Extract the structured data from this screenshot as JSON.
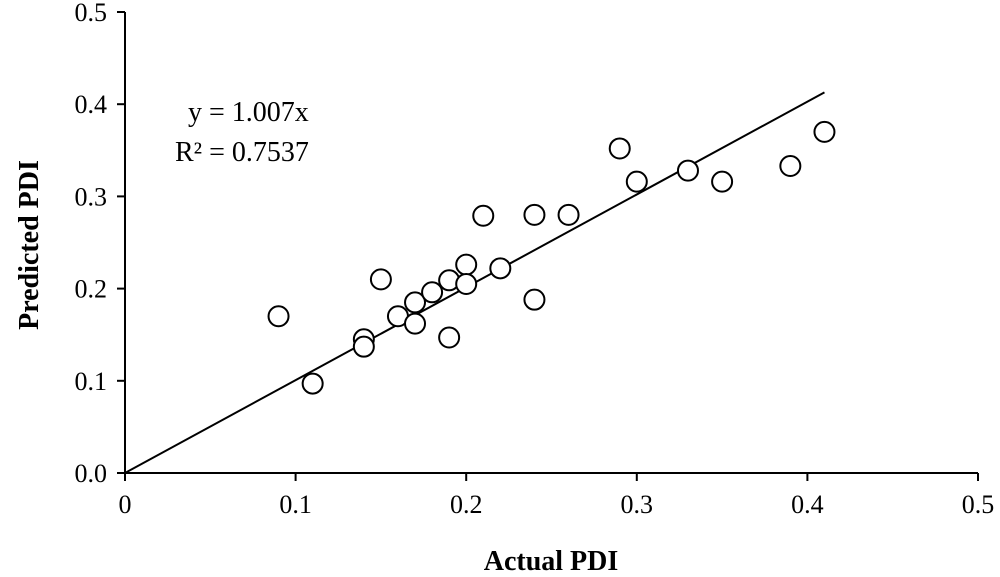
{
  "chart_data": {
    "type": "scatter",
    "title": "",
    "xlabel": "Actual PDI",
    "ylabel": "Predicted PDI",
    "xlim": [
      0,
      0.5
    ],
    "ylim": [
      0,
      0.5
    ],
    "x_ticks": [
      "0",
      "0.1",
      "0.2",
      "0.3",
      "0.4",
      "0.5"
    ],
    "y_ticks": [
      "0.0",
      "0.1",
      "0.2",
      "0.3",
      "0.4",
      "0.5"
    ],
    "grid": false,
    "series": [
      {
        "marker": "open-circle",
        "points": [
          [
            0.09,
            0.17
          ],
          [
            0.11,
            0.097
          ],
          [
            0.14,
            0.145
          ],
          [
            0.14,
            0.137
          ],
          [
            0.15,
            0.21
          ],
          [
            0.16,
            0.17
          ],
          [
            0.17,
            0.185
          ],
          [
            0.17,
            0.162
          ],
          [
            0.18,
            0.196
          ],
          [
            0.19,
            0.209
          ],
          [
            0.19,
            0.147
          ],
          [
            0.2,
            0.226
          ],
          [
            0.2,
            0.205
          ],
          [
            0.21,
            0.279
          ],
          [
            0.22,
            0.222
          ],
          [
            0.24,
            0.28
          ],
          [
            0.24,
            0.188
          ],
          [
            0.26,
            0.28
          ],
          [
            0.29,
            0.352
          ],
          [
            0.3,
            0.316
          ],
          [
            0.33,
            0.328
          ],
          [
            0.35,
            0.316
          ],
          [
            0.39,
            0.333
          ],
          [
            0.41,
            0.37
          ]
        ]
      }
    ],
    "trendline": {
      "type": "linear-through-origin",
      "slope": 1.007,
      "x_range": [
        0,
        0.41
      ],
      "equation": "y = 1.007x",
      "r_squared": "R² = 0.7537"
    }
  }
}
